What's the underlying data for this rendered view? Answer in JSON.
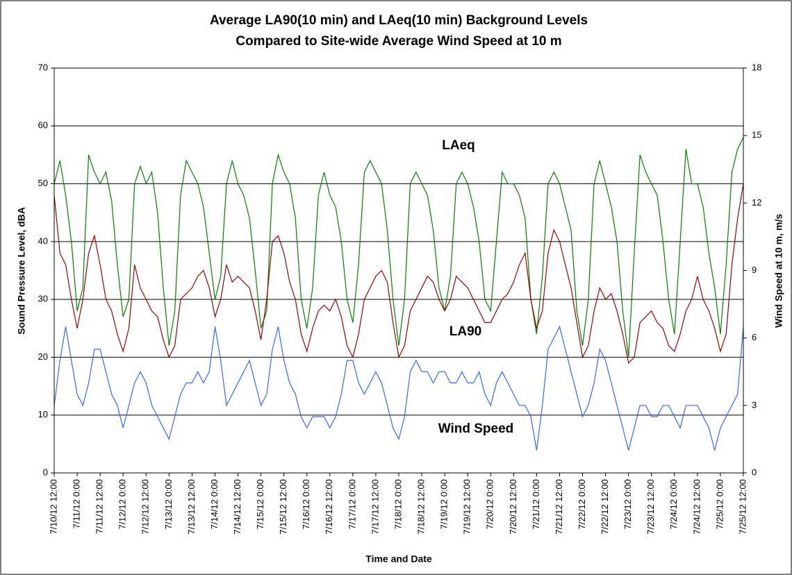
{
  "chart_data": {
    "type": "line",
    "title": "Average LA90(10 min) and LAeq(10 min) Background Levels",
    "subtitle": "Compared to Site-wide Average Wind Speed at 10 m",
    "xlabel": "Time and Date",
    "ylabel": "Sound Pressure Level, dBA",
    "y2label": "Wind Speed at 10 m, m/s",
    "y2color": "#3366ff",
    "x": [
      "7/10/12 12:00",
      "7/10/12 15:00",
      "7/10/12 18:00",
      "7/10/12 21:00",
      "7/11/12 0:00",
      "7/11/12 3:00",
      "7/11/12 6:00",
      "7/11/12 9:00",
      "7/11/12 12:00",
      "7/11/12 15:00",
      "7/11/12 18:00",
      "7/11/12 21:00",
      "7/12/12 0:00",
      "7/12/12 3:00",
      "7/12/12 6:00",
      "7/12/12 9:00",
      "7/12/12 12:00",
      "7/12/12 15:00",
      "7/12/12 18:00",
      "7/12/12 21:00",
      "7/13/12 0:00",
      "7/13/12 3:00",
      "7/13/12 6:00",
      "7/13/12 9:00",
      "7/13/12 12:00",
      "7/13/12 15:00",
      "7/13/12 18:00",
      "7/13/12 21:00",
      "7/14/12 0:00",
      "7/14/12 3:00",
      "7/14/12 6:00",
      "7/14/12 9:00",
      "7/14/12 12:00",
      "7/14/12 15:00",
      "7/14/12 18:00",
      "7/14/12 21:00",
      "7/15/12 0:00",
      "7/15/12 3:00",
      "7/15/12 6:00",
      "7/15/12 9:00",
      "7/15/12 12:00",
      "7/15/12 15:00",
      "7/15/12 18:00",
      "7/15/12 21:00",
      "7/16/12 0:00",
      "7/16/12 3:00",
      "7/16/12 6:00",
      "7/16/12 9:00",
      "7/16/12 12:00",
      "7/16/12 15:00",
      "7/16/12 18:00",
      "7/16/12 21:00",
      "7/17/12 0:00",
      "7/17/12 3:00",
      "7/17/12 6:00",
      "7/17/12 9:00",
      "7/17/12 12:00",
      "7/17/12 15:00",
      "7/17/12 18:00",
      "7/17/12 21:00",
      "7/18/12 0:00",
      "7/18/12 3:00",
      "7/18/12 6:00",
      "7/18/12 9:00",
      "7/18/12 12:00",
      "7/18/12 15:00",
      "7/18/12 18:00",
      "7/18/12 21:00",
      "7/19/12 0:00",
      "7/19/12 3:00",
      "7/19/12 6:00",
      "7/19/12 9:00",
      "7/19/12 12:00",
      "7/19/12 15:00",
      "7/19/12 18:00",
      "7/19/12 21:00",
      "7/20/12 0:00",
      "7/20/12 3:00",
      "7/20/12 6:00",
      "7/20/12 9:00",
      "7/20/12 12:00",
      "7/20/12 15:00",
      "7/20/12 18:00",
      "7/20/12 21:00",
      "7/21/12 0:00",
      "7/21/12 3:00",
      "7/21/12 6:00",
      "7/21/12 9:00",
      "7/21/12 12:00",
      "7/21/12 15:00",
      "7/21/12 18:00",
      "7/21/12 21:00",
      "7/22/12 0:00",
      "7/22/12 3:00",
      "7/22/12 6:00",
      "7/22/12 9:00",
      "7/22/12 12:00",
      "7/22/12 15:00",
      "7/22/12 18:00",
      "7/22/12 21:00",
      "7/23/12 0:00",
      "7/23/12 3:00",
      "7/23/12 6:00",
      "7/23/12 9:00",
      "7/23/12 12:00",
      "7/23/12 15:00",
      "7/23/12 18:00",
      "7/23/12 21:00",
      "7/24/12 0:00",
      "7/24/12 3:00",
      "7/24/12 6:00",
      "7/24/12 9:00",
      "7/24/12 12:00",
      "7/24/12 15:00",
      "7/24/12 18:00",
      "7/24/12 21:00",
      "7/25/12 0:00",
      "7/25/12 3:00",
      "7/25/12 6:00",
      "7/25/12 9:00",
      "7/25/12 12:00"
    ],
    "series": [
      {
        "name": "LAeq",
        "color": "#008000",
        "values": [
          50,
          54,
          48,
          40,
          28,
          32,
          55,
          52,
          50,
          52,
          47,
          36,
          27,
          30,
          50,
          53,
          50,
          52,
          45,
          32,
          22,
          28,
          48,
          54,
          52,
          50,
          46,
          38,
          30,
          34,
          50,
          54,
          50,
          48,
          44,
          35,
          25,
          28,
          50,
          55,
          52,
          50,
          44,
          30,
          25,
          32,
          48,
          52,
          48,
          46,
          40,
          30,
          26,
          36,
          52,
          54,
          52,
          50,
          42,
          30,
          22,
          30,
          50,
          52,
          50,
          48,
          42,
          32,
          28,
          34,
          50,
          52,
          50,
          46,
          40,
          30,
          28,
          40,
          52,
          50,
          50,
          48,
          44,
          30,
          24,
          34,
          50,
          52,
          50,
          46,
          42,
          28,
          22,
          30,
          50,
          54,
          50,
          46,
          40,
          28,
          20,
          38,
          55,
          52,
          50,
          48,
          40,
          30,
          24,
          40,
          56,
          50,
          50,
          46,
          38,
          32,
          24,
          36,
          52,
          56,
          58
        ]
      },
      {
        "name": "LA90",
        "color": "#990000",
        "values": [
          48,
          38,
          36,
          30,
          25,
          30,
          38,
          41,
          36,
          30,
          28,
          24,
          21,
          25,
          36,
          32,
          30,
          28,
          27,
          23,
          20,
          22,
          30,
          31,
          32,
          34,
          35,
          32,
          27,
          30,
          36,
          33,
          34,
          33,
          32,
          28,
          23,
          30,
          40,
          41,
          38,
          33,
          30,
          24,
          21,
          25,
          28,
          29,
          28,
          30,
          27,
          22,
          20,
          24,
          30,
          32,
          34,
          35,
          33,
          26,
          20,
          22,
          28,
          30,
          32,
          34,
          33,
          30,
          28,
          30,
          34,
          33,
          32,
          30,
          28,
          26,
          26,
          28,
          30,
          31,
          33,
          36,
          38,
          30,
          25,
          28,
          38,
          42,
          40,
          36,
          32,
          26,
          20,
          22,
          28,
          32,
          30,
          31,
          28,
          24,
          19,
          20,
          26,
          27,
          28,
          26,
          25,
          22,
          21,
          24,
          28,
          30,
          34,
          30,
          28,
          25,
          21,
          24,
          36,
          44,
          50
        ]
      },
      {
        "name": "Wind Speed",
        "color": "#3366ff",
        "axis": "y2",
        "values": [
          3,
          5,
          6.5,
          5,
          3.5,
          3,
          4,
          5.5,
          5.5,
          4.5,
          3.5,
          3,
          2,
          3,
          4,
          4.5,
          4,
          3,
          2.5,
          2,
          1.5,
          2.5,
          3.5,
          4,
          4,
          4.5,
          4,
          4.5,
          6.5,
          5,
          3,
          3.5,
          4,
          4.5,
          5,
          4,
          3,
          3.5,
          5.5,
          6.5,
          5,
          4,
          3.5,
          2.5,
          2,
          2.5,
          2.5,
          2.5,
          2,
          2.5,
          3.5,
          5,
          5,
          4,
          3.5,
          4,
          4.5,
          4,
          3,
          2,
          1.5,
          2.5,
          4.5,
          5,
          4.5,
          4.5,
          4,
          4.5,
          4.5,
          4,
          4,
          4.5,
          4,
          4,
          4.5,
          3.5,
          3,
          4,
          4.5,
          4,
          3.5,
          3,
          3,
          2.5,
          1,
          3,
          5.5,
          6,
          6.5,
          5.5,
          4.5,
          3.5,
          2.5,
          3,
          4,
          5.5,
          5,
          4,
          3,
          2,
          1,
          2,
          3,
          3,
          2.5,
          2.5,
          3,
          3,
          2.5,
          2,
          3,
          3,
          3,
          2.5,
          2,
          1,
          2,
          2.5,
          3,
          3.5,
          6.5
        ]
      }
    ],
    "xlim": [
      "7/10/12 12:00",
      "7/25/12 12:00"
    ],
    "xticks": [
      "7/10/12 12:00",
      "7/11/12 0:00",
      "7/11/12 12:00",
      "7/12/12 0:00",
      "7/12/12 12:00",
      "7/13/12 0:00",
      "7/13/12 12:00",
      "7/14/12 0:00",
      "7/14/12 12:00",
      "7/15/12 0:00",
      "7/15/12 12:00",
      "7/16/12 0:00",
      "7/16/12 12:00",
      "7/17/12 0:00",
      "7/17/12 12:00",
      "7/18/12 0:00",
      "7/18/12 12:00",
      "7/19/12 0:00",
      "7/19/12 12:00",
      "7/20/12 0:00",
      "7/20/12 12:00",
      "7/21/12 0:00",
      "7/21/12 12:00",
      "7/22/12 0:00",
      "7/22/12 12:00",
      "7/23/12 0:00",
      "7/23/12 12:00",
      "7/24/12 0:00",
      "7/24/12 12:00",
      "7/25/12 0:00",
      "7/25/12 12:00"
    ],
    "ylim": [
      0,
      70
    ],
    "yticks": [
      0,
      10,
      20,
      30,
      40,
      50,
      60,
      70
    ],
    "y2lim": [
      0,
      18
    ],
    "y2ticks": [
      0,
      3,
      6,
      9,
      12,
      15,
      18
    ],
    "grid": true
  }
}
